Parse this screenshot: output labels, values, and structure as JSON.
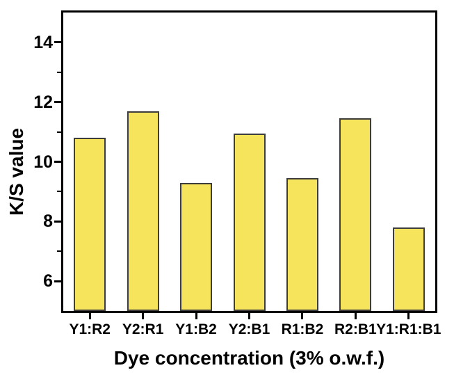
{
  "figure": {
    "background": "#ffffff"
  },
  "chart_data": {
    "type": "bar",
    "title": "",
    "categories": [
      "Y1:R2",
      "Y2:R1",
      "Y1:B2",
      "Y2:B1",
      "R1:B2",
      "R2:B1",
      "Y1:R1:B1"
    ],
    "values": [
      10.8,
      11.7,
      9.3,
      10.95,
      9.45,
      11.45,
      7.8
    ],
    "xlabel": "Dye concentration (3% o.w.f.)",
    "ylabel": "K/S value",
    "ylim": [
      5,
      15
    ],
    "yticks_major": [
      6,
      8,
      10,
      12,
      14
    ],
    "yticks_minor": [
      7,
      9,
      11,
      13
    ],
    "grid": false,
    "legend": null,
    "bar_width_ratio": 0.6,
    "colors": {
      "bar_fill": "#f6e45c",
      "bar_edge": "#3d3d3d",
      "axis": "#000000",
      "text": "#000000",
      "background": "#ffffff"
    }
  }
}
